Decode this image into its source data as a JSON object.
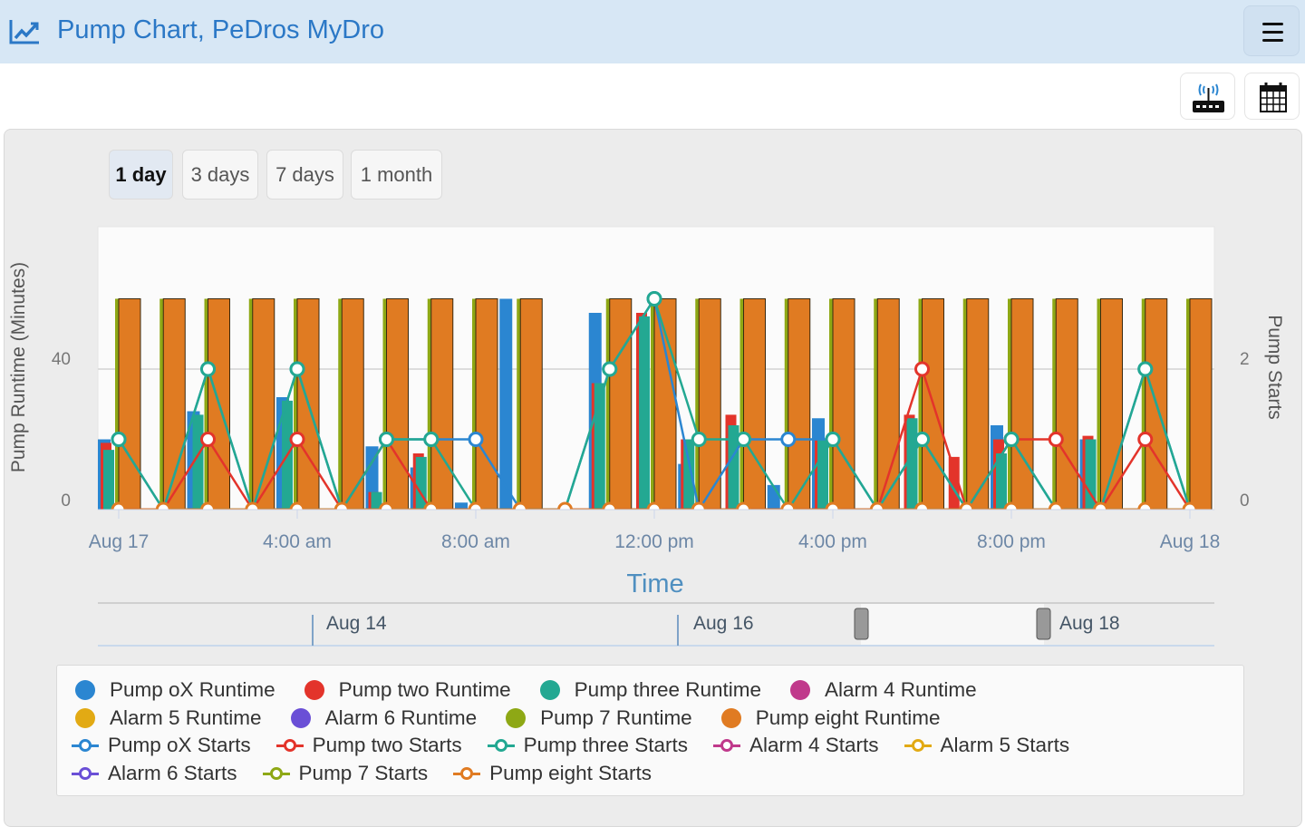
{
  "header": {
    "title": "Pump Chart, PeDros MyDro",
    "icon": "line-chart-icon",
    "menu_icon": "hamburger-icon"
  },
  "toolbar": {
    "router_icon": "router-signal-icon",
    "calendar_icon": "calendar-icon"
  },
  "ranges": [
    {
      "label": "1 day",
      "active": true
    },
    {
      "label": "3 days",
      "active": false
    },
    {
      "label": "7 days",
      "active": false
    },
    {
      "label": "1 month",
      "active": false
    }
  ],
  "navigator": {
    "labels": [
      "Aug 14",
      "Aug 16",
      "Aug 18"
    ]
  },
  "colors": {
    "blue": "#2b86d1",
    "red": "#e3342b",
    "teal": "#23a892",
    "alarm4": "#c0398b",
    "alarm5": "#e2aa14",
    "alarm6": "#6a4fd6",
    "pump7": "#8ea815",
    "orange": "#e07b22"
  },
  "chart_data": {
    "type": "bar",
    "xlabel": "Time",
    "ylabel": "Pump Runtime (Minutes)",
    "y2label": "Pump Starts",
    "ylim": [
      0,
      80
    ],
    "y2lim": [
      0,
      4
    ],
    "yticks": [
      "0",
      "40"
    ],
    "y2ticks": [
      "0",
      "2"
    ],
    "xticks": [
      "Aug 17",
      "4:00 am",
      "8:00 am",
      "12:00 pm",
      "4:00 pm",
      "8:00 pm",
      "Aug 18"
    ],
    "x_hours": [
      0,
      1,
      2,
      3,
      4,
      5,
      6,
      7,
      8,
      9,
      10,
      11,
      12,
      13,
      14,
      15,
      16,
      17,
      18,
      19,
      20,
      21,
      22,
      23,
      24
    ],
    "series": [
      {
        "name": "Pump oX Runtime",
        "kind": "bar",
        "color": "#2b86d1",
        "values": [
          20,
          0,
          28,
          0,
          32,
          0,
          18,
          12,
          2,
          60,
          0,
          56,
          0,
          13,
          0,
          7,
          26,
          0,
          0,
          0,
          24,
          0,
          20,
          0,
          0
        ]
      },
      {
        "name": "Pump two Runtime",
        "kind": "bar",
        "color": "#e3342b",
        "values": [
          19,
          0,
          0,
          0,
          0,
          0,
          5,
          16,
          0,
          0,
          0,
          36,
          56,
          20,
          27,
          0,
          20,
          0,
          27,
          15,
          20,
          0,
          21,
          0,
          0
        ]
      },
      {
        "name": "Pump three Runtime",
        "kind": "bar",
        "color": "#23a892",
        "values": [
          17,
          0,
          27,
          0,
          31,
          0,
          5,
          15,
          0,
          0,
          0,
          36,
          55,
          20,
          24,
          0,
          20,
          0,
          26,
          0,
          16,
          0,
          20,
          0,
          0
        ]
      },
      {
        "name": "Alarm 4 Runtime",
        "kind": "bar",
        "color": "#c0398b",
        "values": [
          0,
          0,
          0,
          0,
          0,
          0,
          0,
          0,
          0,
          0,
          0,
          0,
          0,
          0,
          0,
          0,
          0,
          0,
          0,
          0,
          0,
          0,
          0,
          0,
          0
        ]
      },
      {
        "name": "Alarm 5 Runtime",
        "kind": "bar",
        "color": "#e2aa14",
        "values": [
          0,
          0,
          0,
          0,
          0,
          0,
          0,
          0,
          0,
          0,
          0,
          0,
          0,
          0,
          0,
          0,
          0,
          0,
          0,
          0,
          0,
          0,
          0,
          0,
          0
        ]
      },
      {
        "name": "Alarm 6 Runtime",
        "kind": "bar",
        "color": "#6a4fd6",
        "values": [
          0,
          0,
          0,
          0,
          0,
          0,
          0,
          0,
          0,
          0,
          0,
          0,
          0,
          0,
          0,
          0,
          0,
          0,
          0,
          0,
          0,
          0,
          0,
          0,
          0
        ]
      },
      {
        "name": "Pump 7 Runtime",
        "kind": "bar",
        "color": "#8ea815",
        "values": [
          60,
          60,
          60,
          60,
          60,
          60,
          60,
          60,
          60,
          60,
          0,
          60,
          60,
          60,
          60,
          60,
          60,
          60,
          60,
          60,
          60,
          60,
          60,
          60,
          60
        ]
      },
      {
        "name": "Pump eight Runtime",
        "kind": "bar",
        "color": "#e07b22",
        "values": [
          60,
          60,
          60,
          60,
          60,
          60,
          60,
          60,
          60,
          60,
          0,
          60,
          60,
          60,
          60,
          60,
          60,
          60,
          60,
          60,
          60,
          60,
          60,
          60,
          60
        ]
      },
      {
        "name": "Pump oX Starts",
        "kind": "line",
        "color": "#2b86d1",
        "values": [
          1,
          0,
          2,
          0,
          2,
          0,
          1,
          1,
          1,
          0,
          0,
          2,
          3,
          0,
          1,
          1,
          1,
          0,
          1,
          0,
          1,
          0,
          0,
          2,
          0
        ]
      },
      {
        "name": "Pump two Starts",
        "kind": "line",
        "color": "#e3342b",
        "values": [
          0,
          0,
          1,
          0,
          1,
          0,
          1,
          0,
          0,
          0,
          0,
          0,
          0,
          0,
          0,
          0,
          0,
          0,
          2,
          0,
          1,
          1,
          0,
          1,
          0
        ]
      },
      {
        "name": "Pump three Starts",
        "kind": "line",
        "color": "#23a892",
        "values": [
          1,
          0,
          2,
          0,
          2,
          0,
          1,
          1,
          0,
          0,
          0,
          2,
          3,
          1,
          1,
          0,
          1,
          0,
          1,
          0,
          1,
          0,
          0,
          2,
          0
        ]
      },
      {
        "name": "Alarm 4 Starts",
        "kind": "line",
        "color": "#c0398b",
        "values": [
          0,
          0,
          0,
          0,
          0,
          0,
          0,
          0,
          0,
          0,
          0,
          0,
          0,
          0,
          0,
          0,
          0,
          0,
          0,
          0,
          0,
          0,
          0,
          0,
          0
        ]
      },
      {
        "name": "Alarm 5 Starts",
        "kind": "line",
        "color": "#e2aa14",
        "values": [
          0,
          0,
          0,
          0,
          0,
          0,
          0,
          0,
          0,
          0,
          0,
          0,
          0,
          0,
          0,
          0,
          0,
          0,
          0,
          0,
          0,
          0,
          0,
          0,
          0
        ]
      },
      {
        "name": "Alarm 6 Starts",
        "kind": "line",
        "color": "#6a4fd6",
        "values": [
          0,
          0,
          0,
          0,
          0,
          0,
          0,
          0,
          0,
          0,
          0,
          0,
          0,
          0,
          0,
          0,
          0,
          0,
          0,
          0,
          0,
          0,
          0,
          0,
          0
        ]
      },
      {
        "name": "Pump 7 Starts",
        "kind": "line",
        "color": "#8ea815",
        "values": [
          0,
          0,
          0,
          0,
          0,
          0,
          0,
          0,
          0,
          0,
          0,
          0,
          0,
          0,
          0,
          0,
          0,
          0,
          0,
          0,
          0,
          0,
          0,
          0,
          0
        ]
      },
      {
        "name": "Pump eight Starts",
        "kind": "line",
        "color": "#e07b22",
        "values": [
          0,
          0,
          0,
          0,
          0,
          0,
          0,
          0,
          0,
          0,
          0,
          0,
          0,
          0,
          0,
          0,
          0,
          0,
          0,
          0,
          0,
          0,
          0,
          0,
          0
        ]
      }
    ],
    "legend": "bottom"
  }
}
